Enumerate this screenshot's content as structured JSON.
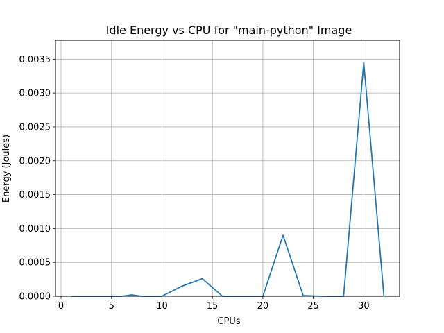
{
  "chart_data": {
    "type": "line",
    "title": "Idle Energy vs CPU for \"main-python\" Image",
    "xlabel": "CPUs",
    "ylabel": "Energy (Joules)",
    "xlim": [
      -0.55,
      33.55
    ],
    "ylim": [
      0,
      0.00378
    ],
    "xticks": [
      0,
      5,
      10,
      15,
      20,
      25,
      30
    ],
    "xtick_labels": [
      "0",
      "5",
      "10",
      "15",
      "20",
      "25",
      "30"
    ],
    "yticks": [
      0,
      0.0005,
      0.001,
      0.0015,
      0.002,
      0.0025,
      0.003,
      0.0035
    ],
    "ytick_labels": [
      "0.0000",
      "0.0005",
      "0.0010",
      "0.0015",
      "0.0020",
      "0.0025",
      "0.0030",
      "0.0035"
    ],
    "grid": true,
    "line_color": "#1f77b4",
    "series": [
      {
        "x": [
          1,
          2,
          3,
          4,
          5,
          6,
          7,
          8,
          9,
          10,
          12,
          14,
          16,
          18,
          20,
          22,
          24,
          26,
          28,
          30,
          32
        ],
        "y": [
          0,
          0,
          0,
          0,
          0,
          0,
          2e-05,
          0,
          0,
          0,
          0.00015,
          0.00026,
          0,
          0,
          0,
          0.0009,
          1e-05,
          0,
          0,
          0.00345,
          0
        ]
      }
    ]
  }
}
